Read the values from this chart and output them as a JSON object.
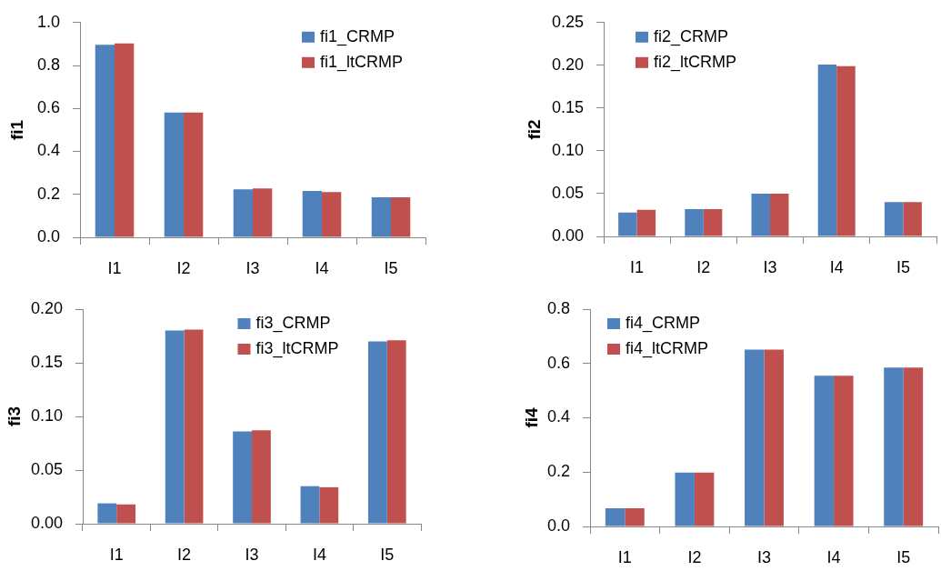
{
  "chart_data": [
    {
      "type": "bar",
      "ylabel": "fi1",
      "categories": [
        "I1",
        "I2",
        "I3",
        "I4",
        "I5"
      ],
      "series": [
        {
          "name": "fi1_CRMP",
          "color": "#4f81bd",
          "values": [
            0.896,
            0.581,
            0.223,
            0.216,
            0.186
          ]
        },
        {
          "name": "fi1_ltCRMP",
          "color": "#c0504d",
          "values": [
            0.903,
            0.581,
            0.228,
            0.211,
            0.186
          ]
        }
      ],
      "ylim": [
        0,
        1
      ],
      "yticks": [
        {
          "value": 0,
          "label": "0.0"
        },
        0.2,
        0.4,
        0.6,
        0.8,
        {
          "value": 1,
          "label": "1.0"
        }
      ],
      "legend": "top right"
    },
    {
      "type": "bar",
      "ylabel": "fi2",
      "categories": [
        "I1",
        "I2",
        "I3",
        "I4",
        "I5"
      ],
      "series": [
        {
          "name": "fi2_CRMP",
          "color": "#4f81bd",
          "values": [
            0.028,
            0.032,
            0.05,
            0.201,
            0.04
          ]
        },
        {
          "name": "fi2_ltCRMP",
          "color": "#c0504d",
          "values": [
            0.031,
            0.032,
            0.05,
            0.199,
            0.04
          ]
        }
      ],
      "ylim": [
        0,
        0.25
      ],
      "yticks": [
        {
          "value": 0,
          "label": "0.00"
        },
        0.05,
        {
          "value": 0.1,
          "label": "0.10"
        },
        0.15,
        {
          "value": 0.2,
          "label": "0.20"
        },
        0.25
      ],
      "legend": "top left"
    },
    {
      "type": "bar",
      "ylabel": "fi3",
      "categories": [
        "I1",
        "I2",
        "I3",
        "I4",
        "I5"
      ],
      "series": [
        {
          "name": "fi3_CRMP",
          "color": "#4f81bd",
          "values": [
            0.019,
            0.18,
            0.086,
            0.035,
            0.17
          ]
        },
        {
          "name": "fi3_ltCRMP",
          "color": "#c0504d",
          "values": [
            0.018,
            0.181,
            0.087,
            0.034,
            0.171
          ]
        }
      ],
      "ylim": [
        0,
        0.2
      ],
      "yticks": [
        {
          "value": 0,
          "label": "0.00"
        },
        0.05,
        {
          "value": 0.1,
          "label": "0.10"
        },
        0.15,
        {
          "value": 0.2,
          "label": "0.20"
        }
      ],
      "legend": "top"
    },
    {
      "type": "bar",
      "ylabel": "fi4",
      "categories": [
        "I1",
        "I2",
        "I3",
        "I4",
        "I5"
      ],
      "series": [
        {
          "name": "fi4_CRMP",
          "color": "#4f81bd",
          "values": [
            0.067,
            0.198,
            0.651,
            0.555,
            0.585
          ]
        },
        {
          "name": "fi4_ltCRMP",
          "color": "#c0504d",
          "values": [
            0.067,
            0.198,
            0.651,
            0.555,
            0.585
          ]
        }
      ],
      "ylim": [
        0,
        0.8
      ],
      "yticks": [
        {
          "value": 0,
          "label": "0.0"
        },
        0.2,
        0.4,
        0.6,
        0.8
      ],
      "legend": "top left"
    }
  ]
}
